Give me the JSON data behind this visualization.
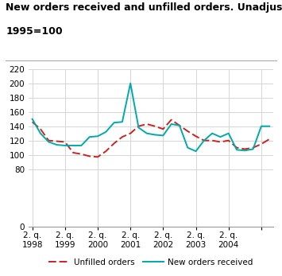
{
  "title_line1": "New orders received and unfilled orders. Unadjusted.",
  "title_line2": "1995=100",
  "title_fontsize": 9,
  "ylim": [
    0,
    220
  ],
  "yticks": [
    0,
    80,
    100,
    120,
    140,
    160,
    180,
    200,
    220
  ],
  "background_color": "#ffffff",
  "grid_color": "#d0d0d0",
  "unfilled_orders": {
    "label": "Unfilled orders",
    "color": "#cc2222",
    "values": [
      146,
      136,
      120,
      119,
      118,
      103,
      101,
      98,
      97,
      105,
      116,
      125,
      130,
      140,
      143,
      140,
      136,
      149,
      141,
      133,
      126,
      120,
      120,
      118,
      120,
      110,
      108,
      110,
      115,
      122
    ]
  },
  "new_orders": {
    "label": "New orders received",
    "color": "#00aaaa",
    "values": [
      150,
      130,
      118,
      114,
      113,
      113,
      113,
      125,
      126,
      132,
      145,
      146,
      200,
      138,
      130,
      128,
      127,
      143,
      141,
      110,
      105,
      120,
      130,
      125,
      130,
      107,
      106,
      108,
      140,
      140
    ]
  },
  "x_tick_positions": [
    0,
    4,
    8,
    12,
    16,
    20,
    24,
    28
  ],
  "x_tick_labels": [
    "2. q.\n1998",
    "2. q.\n1999",
    "2. q.\n2000",
    "2. q.\n2001",
    "2. q.\n2002",
    "2. q.\n2003",
    "2. q.\n2004",
    ""
  ],
  "n_points": 30,
  "line_width": 1.4
}
